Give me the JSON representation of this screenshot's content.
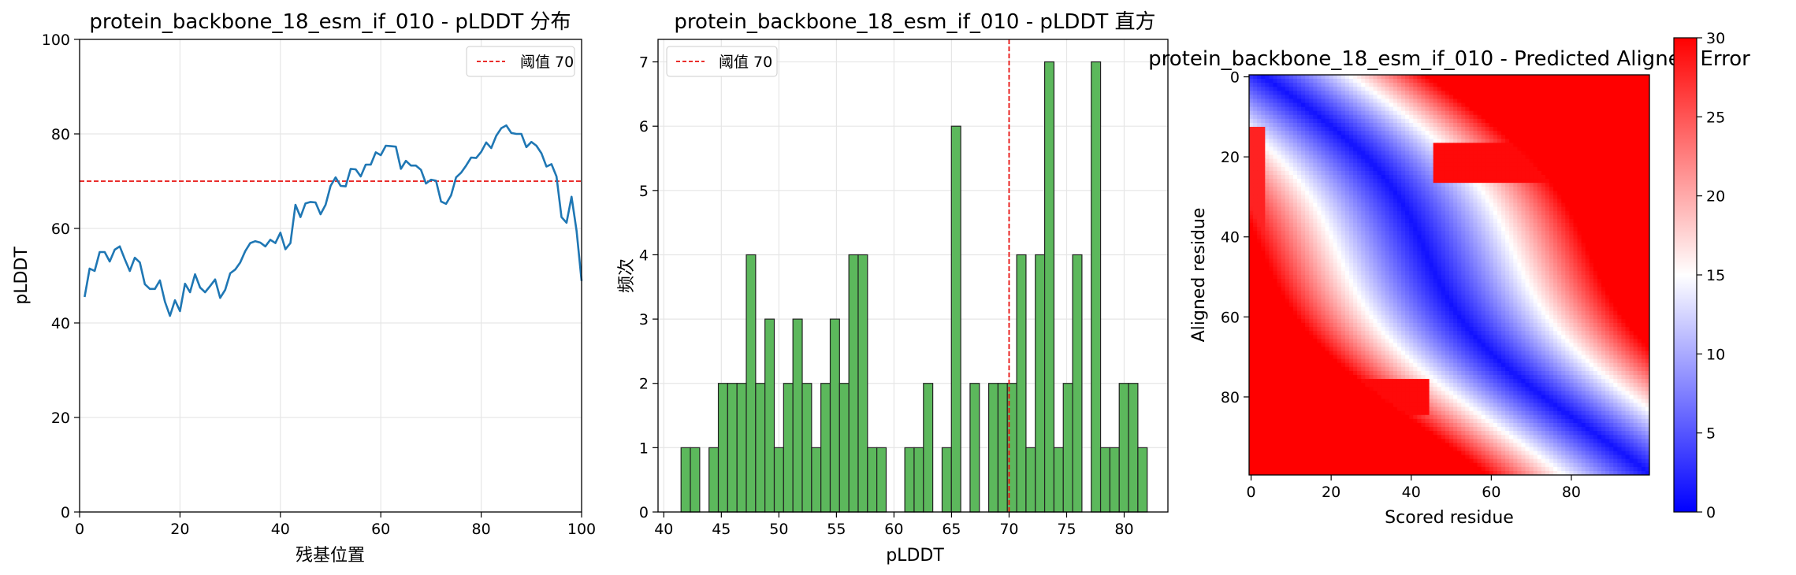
{
  "chart_data": [
    {
      "type": "line",
      "title": "protein_backbone_18_esm_if_010 - pLDDT 分布",
      "xlabel": "残基位置",
      "ylabel": "pLDDT",
      "xlim": [
        0,
        100
      ],
      "ylim": [
        0,
        100
      ],
      "xticks": [
        "0",
        "20",
        "40",
        "60",
        "80",
        "100"
      ],
      "yticks": [
        "0",
        "20",
        "40",
        "60",
        "80",
        "100"
      ],
      "grid": true,
      "legend": {
        "position": "top-right",
        "entries": [
          "阈值 70"
        ]
      },
      "threshold": {
        "value": 70,
        "label": "阈值 70",
        "color": "#e8100e",
        "style": "dashed"
      },
      "series": [
        {
          "color": "#1f77b4",
          "x": [
            1,
            2,
            3,
            4,
            5,
            6,
            7,
            8,
            9,
            10,
            11,
            12,
            13,
            14,
            15,
            16,
            17,
            18,
            19,
            20,
            21,
            22,
            23,
            24,
            25,
            26,
            27,
            28,
            29,
            30,
            31,
            32,
            33,
            34,
            35,
            36,
            37,
            38,
            39,
            40,
            41,
            42,
            43,
            44,
            45,
            46,
            47,
            48,
            49,
            50,
            51,
            52,
            53,
            54,
            55,
            56,
            57,
            58,
            59,
            60,
            61,
            62,
            63,
            64,
            65,
            66,
            67,
            68,
            69,
            70,
            71,
            72,
            73,
            74,
            75,
            76,
            77,
            78,
            79,
            80,
            81,
            82,
            83,
            84,
            85,
            86,
            87,
            88,
            89,
            90,
            91,
            92,
            93,
            94,
            95,
            96,
            97,
            98,
            99,
            100
          ],
          "y": [
            45.5,
            51.5,
            51,
            55,
            55,
            53,
            55.5,
            56.2,
            53.5,
            51,
            53.8,
            52.8,
            48.2,
            47.2,
            47.2,
            49,
            44.5,
            41.5,
            44.8,
            42.5,
            48.3,
            46.5,
            50.3,
            47.5,
            46.5,
            47.8,
            49.2,
            45.3,
            47,
            50.5,
            51.3,
            52.8,
            55.2,
            56.9,
            57.3,
            57,
            56.2,
            57.6,
            56.9,
            59.1,
            55.6,
            56.9,
            65,
            62.4,
            65.3,
            65.6,
            65.5,
            63,
            65,
            69,
            70.8,
            69,
            68.9,
            72.6,
            72.5,
            71,
            73.5,
            73.5,
            76.1,
            75.5,
            77.5,
            77.4,
            77.3,
            72.6,
            74.3,
            73.3,
            73.3,
            72.4,
            69.5,
            70.3,
            70.1,
            65.7,
            65.2,
            67,
            70.8,
            71.8,
            73.3,
            75,
            74.9,
            76.2,
            78.2,
            77,
            79.6,
            81.2,
            81.8,
            80.2,
            80,
            80,
            77.2,
            78.3,
            77.5,
            75.9,
            73.1,
            73.6,
            71,
            62.4,
            61.2,
            66.7,
            59.5,
            48.9
          ]
        }
      ]
    },
    {
      "type": "bar",
      "title": "protein_backbone_18_esm_if_010 - pLDDT 直方",
      "xlabel": "pLDDT",
      "ylabel": "频次",
      "xlim": [
        39.5,
        83.8
      ],
      "ylim": [
        0,
        7.35
      ],
      "xticks": [
        "40",
        "45",
        "50",
        "55",
        "60",
        "65",
        "70",
        "75",
        "80"
      ],
      "yticks": [
        "0",
        "1",
        "2",
        "3",
        "4",
        "5",
        "6",
        "7"
      ],
      "grid": true,
      "legend": {
        "position": "top-left",
        "entries": [
          "阈值 70"
        ]
      },
      "threshold": {
        "value": 70,
        "label": "阈值 70",
        "color": "#e8100e",
        "style": "dashed"
      },
      "bar_color": "#5cb85c",
      "bins_start": 41.5,
      "bin_width": 0.81,
      "counts": [
        1,
        1,
        0,
        1,
        2,
        2,
        2,
        4,
        2,
        3,
        1,
        2,
        3,
        2,
        1,
        2,
        3,
        2,
        4,
        4,
        1,
        1,
        0,
        0,
        1,
        1,
        2,
        0,
        1,
        6,
        0,
        2,
        0,
        2,
        2,
        2,
        4,
        1,
        4,
        7,
        1,
        2,
        4,
        0,
        7,
        1,
        1,
        2,
        2,
        1
      ]
    },
    {
      "type": "heatmap",
      "title": "protein_backbone_18_esm_if_010 - Predicted Aligned Error",
      "xlabel": "Scored residue",
      "ylabel": "Aligned residue",
      "xticks": [
        "0",
        "20",
        "40",
        "60",
        "80"
      ],
      "yticks": [
        "0",
        "20",
        "40",
        "60",
        "80"
      ],
      "size": 100,
      "colormap": "bwr",
      "vmin": 0,
      "vmax": 30,
      "colorbar_ticks": [
        "0",
        "5",
        "10",
        "15",
        "20",
        "25",
        "30"
      ]
    }
  ]
}
